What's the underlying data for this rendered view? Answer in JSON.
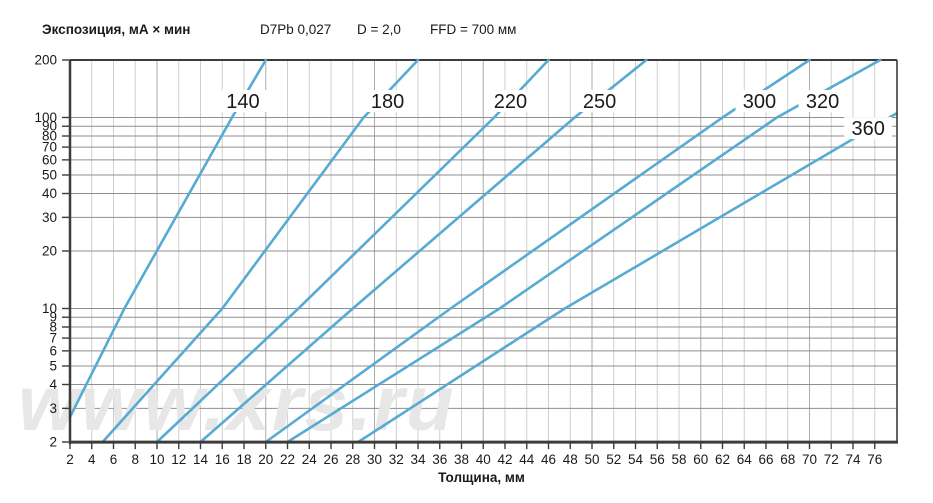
{
  "chart_data": {
    "type": "line",
    "title": "Экспозиция, мА × мин",
    "params": {
      "film": "D7Pb 0,027",
      "density": "D = 2,0",
      "ffd": "FFD = 700 мм"
    },
    "xlabel": "Толщина, мм",
    "watermark": "www.xrs.ru",
    "x_axis": {
      "label": "Толщина, мм",
      "min": 2,
      "max": 78,
      "ticks": [
        2,
        4,
        6,
        8,
        10,
        12,
        14,
        16,
        18,
        20,
        22,
        24,
        26,
        28,
        30,
        32,
        34,
        36,
        38,
        40,
        42,
        44,
        46,
        48,
        50,
        52,
        54,
        56,
        58,
        60,
        62,
        64,
        66,
        68,
        70,
        72,
        74,
        76
      ]
    },
    "y_axis": {
      "label": "Экспозиция, мА × мин",
      "scale": "log",
      "min": 2,
      "max": 200,
      "ticks": [
        200,
        100,
        90,
        80,
        70,
        60,
        50,
        40,
        30,
        20,
        10,
        9,
        8,
        7,
        6,
        5,
        4,
        3,
        2
      ]
    },
    "grid": true,
    "line_color": "#57abd3",
    "axis_color": "#3c3c3c",
    "grid_h_color": "#8f8f8f",
    "grid_v_color": "#cfcfcf",
    "grid_v_major_color": "#ababab",
    "watermark_color": "#e7e7e7",
    "series": [
      {
        "name": "140",
        "points": [
          [
            2,
            2.7
          ],
          [
            7,
            10
          ],
          [
            16.9,
            100
          ],
          [
            20,
            200
          ]
        ],
        "label_t": 17.9,
        "label_E": 122
      },
      {
        "name": "180",
        "points": [
          [
            5,
            2
          ],
          [
            16,
            10
          ],
          [
            29,
            100
          ],
          [
            34,
            200
          ]
        ],
        "label_t": 31.2,
        "label_E": 122
      },
      {
        "name": "220",
        "points": [
          [
            10,
            2
          ],
          [
            23,
            10
          ],
          [
            41,
            100
          ],
          [
            46,
            200
          ]
        ],
        "label_t": 42.5,
        "label_E": 122
      },
      {
        "name": "250",
        "points": [
          [
            14,
            2
          ],
          [
            28,
            10
          ],
          [
            48.4,
            100
          ],
          [
            55,
            200
          ]
        ],
        "label_t": 50.7,
        "label_E": 122
      },
      {
        "name": "300",
        "points": [
          [
            20,
            2
          ],
          [
            37,
            10
          ],
          [
            62,
            100
          ],
          [
            70,
            200
          ]
        ],
        "label_t": 65.4,
        "label_E": 122
      },
      {
        "name": "320",
        "points": [
          [
            22,
            2
          ],
          [
            41.5,
            10
          ],
          [
            67,
            100
          ],
          [
            76.5,
            200
          ]
        ],
        "label_t": 71.2,
        "label_E": 122
      },
      {
        "name": "360",
        "points": [
          [
            28.5,
            2
          ],
          [
            47.5,
            10
          ],
          [
            78,
            105
          ]
        ],
        "label_t": 75.4,
        "label_E": 88
      }
    ]
  }
}
